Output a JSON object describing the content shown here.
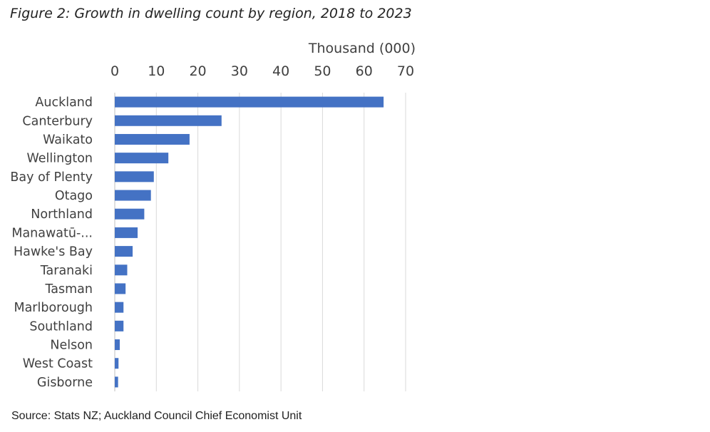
{
  "chart_data": {
    "type": "bar",
    "orientation": "horizontal",
    "title": "Figure 2: Growth in dwelling count by region, 2018 to 2023",
    "xlabel": "Thousand (000)",
    "axis_position": "top",
    "xlim": [
      0,
      70
    ],
    "xticks": [
      0,
      10,
      20,
      30,
      40,
      50,
      60,
      70
    ],
    "grid": true,
    "bar_color": "#4472C4",
    "categories": [
      "Auckland",
      "Canterbury",
      "Waikato",
      "Wellington",
      "Bay of Plenty",
      "Otago",
      "Northland",
      "Manawatū-...",
      "Hawke's Bay",
      "Taranaki",
      "Tasman",
      "Marlborough",
      "Southland",
      "Nelson",
      "West Coast",
      "Gisborne"
    ],
    "values": [
      64.7,
      25.7,
      18.0,
      12.9,
      9.4,
      8.7,
      7.1,
      5.5,
      4.3,
      3.0,
      2.6,
      2.1,
      2.1,
      1.2,
      0.9,
      0.8
    ]
  },
  "source": "Source: Stats NZ; Auckland Council Chief Economist Unit"
}
